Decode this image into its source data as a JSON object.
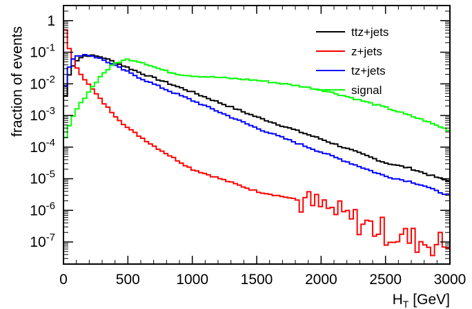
{
  "chart_data": {
    "type": "line",
    "step": true,
    "xlabel": "H",
    "xlabel_sub": "T",
    "xlabel_unit": "[GeV]",
    "ylabel": "fraction of events",
    "xlim": [
      0,
      3000
    ],
    "ylim": [
      2e-08,
      3
    ],
    "yscale": "log",
    "grid": false,
    "legend_position": "top-right",
    "x_ticks": [
      0,
      500,
      1000,
      1500,
      2000,
      2500,
      3000
    ],
    "x_tick_labels": [
      "0",
      "500",
      "1000",
      "1500",
      "2000",
      "2500",
      "3000"
    ],
    "y_ticks": [
      1,
      0.1,
      0.01,
      0.001,
      0.0001,
      1e-05,
      1e-06,
      1e-07
    ],
    "y_tick_labels": [
      {
        "base": "1",
        "exp": ""
      },
      {
        "base": "10",
        "exp": "-1"
      },
      {
        "base": "10",
        "exp": "-2"
      },
      {
        "base": "10",
        "exp": "-3"
      },
      {
        "base": "10",
        "exp": "-4"
      },
      {
        "base": "10",
        "exp": "-5"
      },
      {
        "base": "10",
        "exp": "-6"
      },
      {
        "base": "10",
        "exp": "-7"
      }
    ],
    "bin_width": 30,
    "series": [
      {
        "name": "ttz+jets",
        "color": "#000000",
        "x": [
          0,
          30,
          60,
          90,
          150,
          210,
          300,
          450,
          600,
          800,
          1000,
          1500,
          2000,
          2500,
          2700,
          2800,
          2900,
          3000
        ],
        "y": [
          0.0015,
          0.012,
          0.03,
          0.05,
          0.075,
          0.08,
          0.07,
          0.04,
          0.022,
          0.011,
          0.0055,
          0.0009,
          0.00018,
          3.2e-05,
          2.1e-05,
          1.5e-05,
          1.1e-05,
          8e-06
        ]
      },
      {
        "name": "z+jets",
        "color": "#ff0000",
        "x": [
          0,
          10,
          20,
          30,
          60,
          100,
          150,
          200,
          300,
          400,
          500,
          700,
          1000,
          1250,
          1500,
          1750,
          2000,
          2200,
          2400,
          2600,
          2800,
          3000
        ],
        "y": [
          0.1,
          0.7,
          0.4,
          0.2,
          0.08,
          0.035,
          0.017,
          0.009,
          0.0028,
          0.001,
          0.0004,
          0.00011,
          2e-05,
          9e-06,
          4e-06,
          2.5e-06,
          1.3e-06,
          6e-07,
          3e-07,
          1.5e-07,
          1e-07,
          8e-08
        ]
      },
      {
        "name": "tz+jets",
        "color": "#0000ff",
        "x": [
          0,
          30,
          60,
          90,
          150,
          210,
          300,
          450,
          600,
          800,
          1000,
          1500,
          2000,
          2500,
          2700,
          2800,
          2900,
          3000
        ],
        "y": [
          0.003,
          0.025,
          0.05,
          0.07,
          0.085,
          0.08,
          0.06,
          0.03,
          0.015,
          0.0065,
          0.003,
          0.0004,
          7e-05,
          1.2e-05,
          8e-06,
          6e-06,
          4e-06,
          3e-06
        ]
      },
      {
        "name": "signal",
        "color": "#00ff00",
        "x": [
          0,
          30,
          60,
          100,
          150,
          200,
          300,
          400,
          500,
          600,
          700,
          800,
          900,
          1000,
          1200,
          1500,
          1800,
          2000,
          2200,
          2500,
          2800,
          3000
        ],
        "y": [
          0.00012,
          0.0003,
          0.0007,
          0.0015,
          0.003,
          0.006,
          0.02,
          0.045,
          0.06,
          0.05,
          0.035,
          0.025,
          0.02,
          0.018,
          0.016,
          0.013,
          0.009,
          0.0065,
          0.004,
          0.0018,
          0.0007,
          0.00033
        ]
      }
    ]
  }
}
